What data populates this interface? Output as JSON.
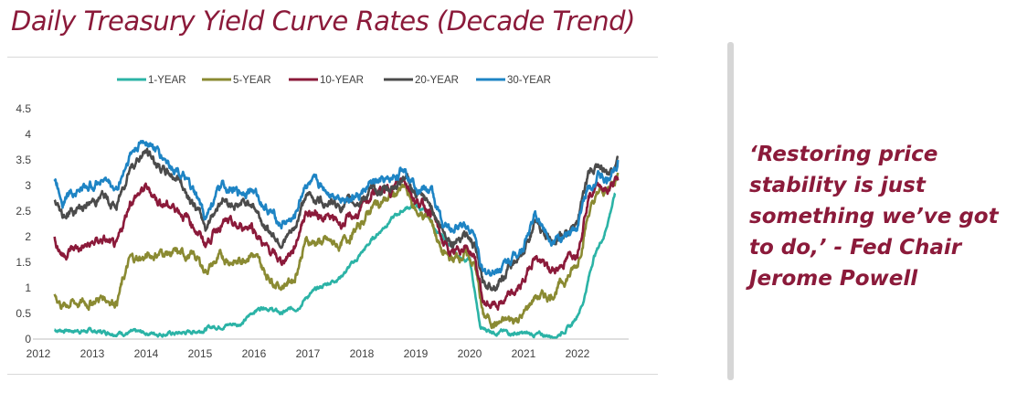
{
  "page": {
    "title": "Daily Treasury Yield Curve Rates (Decade Trend)",
    "quote": "‘Restoring price stability is just something we’ve got to do,’ - Fed Chair Jerome Powell",
    "accent_color": "#8b1a3a"
  },
  "chart_data": {
    "type": "line",
    "title": "",
    "xlabel": "",
    "ylabel": "",
    "xlim": [
      2012,
      2022.95
    ],
    "ylim": [
      0,
      4.5
    ],
    "x_ticks": [
      "2012",
      "2013",
      "2014",
      "2015",
      "2016",
      "2017",
      "2018",
      "2019",
      "2020",
      "2021",
      "2022"
    ],
    "y_ticks": [
      "0",
      "0.5",
      "1",
      "1.5",
      "2",
      "2.5",
      "3",
      "3.5",
      "4",
      "4.5"
    ],
    "grid": false,
    "legend_position": "top",
    "series": [
      {
        "name": "1-YEAR",
        "color": "#2bb3a6",
        "points": [
          [
            2012.3,
            0.18
          ],
          [
            2012.6,
            0.17
          ],
          [
            2012.9,
            0.16
          ],
          [
            2013.2,
            0.14
          ],
          [
            2013.5,
            0.13
          ],
          [
            2013.8,
            0.12
          ],
          [
            2014.0,
            0.12
          ],
          [
            2014.3,
            0.11
          ],
          [
            2014.6,
            0.11
          ],
          [
            2014.9,
            0.15
          ],
          [
            2015.2,
            0.23
          ],
          [
            2015.5,
            0.28
          ],
          [
            2015.8,
            0.32
          ],
          [
            2016.0,
            0.55
          ],
          [
            2016.2,
            0.65
          ],
          [
            2016.5,
            0.5
          ],
          [
            2016.8,
            0.62
          ],
          [
            2017.0,
            0.85
          ],
          [
            2017.3,
            1.05
          ],
          [
            2017.6,
            1.22
          ],
          [
            2017.9,
            1.55
          ],
          [
            2018.2,
            1.95
          ],
          [
            2018.5,
            2.3
          ],
          [
            2018.8,
            2.55
          ],
          [
            2019.0,
            2.62
          ],
          [
            2019.2,
            2.45
          ],
          [
            2019.4,
            2.1
          ],
          [
            2019.6,
            1.85
          ],
          [
            2019.8,
            1.6
          ],
          [
            2020.0,
            1.55
          ],
          [
            2020.2,
            0.2
          ],
          [
            2020.5,
            0.15
          ],
          [
            2020.8,
            0.12
          ],
          [
            2021.0,
            0.1
          ],
          [
            2021.3,
            0.08
          ],
          [
            2021.6,
            0.06
          ],
          [
            2021.9,
            0.28
          ],
          [
            2022.1,
            0.7
          ],
          [
            2022.3,
            1.6
          ],
          [
            2022.5,
            2.05
          ],
          [
            2022.7,
            2.85
          ]
        ]
      },
      {
        "name": "5-YEAR",
        "color": "#8a8a32",
        "points": [
          [
            2012.3,
            0.88
          ],
          [
            2012.45,
            0.65
          ],
          [
            2012.6,
            0.72
          ],
          [
            2012.9,
            0.7
          ],
          [
            2013.2,
            0.82
          ],
          [
            2013.45,
            0.75
          ],
          [
            2013.7,
            1.55
          ],
          [
            2014.0,
            1.6
          ],
          [
            2014.3,
            1.7
          ],
          [
            2014.6,
            1.65
          ],
          [
            2014.9,
            1.62
          ],
          [
            2015.1,
            1.35
          ],
          [
            2015.4,
            1.6
          ],
          [
            2015.7,
            1.5
          ],
          [
            2015.95,
            1.72
          ],
          [
            2016.2,
            1.3
          ],
          [
            2016.5,
            1.05
          ],
          [
            2016.75,
            1.2
          ],
          [
            2016.95,
            1.9
          ],
          [
            2017.3,
            1.9
          ],
          [
            2017.6,
            1.82
          ],
          [
            2017.95,
            2.2
          ],
          [
            2018.2,
            2.6
          ],
          [
            2018.5,
            2.75
          ],
          [
            2018.8,
            2.95
          ],
          [
            2019.0,
            2.5
          ],
          [
            2019.3,
            2.3
          ],
          [
            2019.5,
            1.65
          ],
          [
            2019.7,
            1.55
          ],
          [
            2019.9,
            1.68
          ],
          [
            2020.1,
            1.45
          ],
          [
            2020.25,
            0.45
          ],
          [
            2020.5,
            0.3
          ],
          [
            2020.8,
            0.37
          ],
          [
            2021.0,
            0.46
          ],
          [
            2021.2,
            0.82
          ],
          [
            2021.5,
            0.85
          ],
          [
            2021.8,
            1.2
          ],
          [
            2022.0,
            1.45
          ],
          [
            2022.2,
            2.45
          ],
          [
            2022.4,
            2.85
          ],
          [
            2022.55,
            2.9
          ],
          [
            2022.75,
            3.25
          ]
        ]
      },
      {
        "name": "10-YEAR",
        "color": "#8b1a3a",
        "points": [
          [
            2012.3,
            1.95
          ],
          [
            2012.45,
            1.65
          ],
          [
            2012.6,
            1.75
          ],
          [
            2012.9,
            1.8
          ],
          [
            2013.2,
            1.95
          ],
          [
            2013.45,
            1.75
          ],
          [
            2013.7,
            2.7
          ],
          [
            2014.0,
            2.95
          ],
          [
            2014.3,
            2.65
          ],
          [
            2014.6,
            2.55
          ],
          [
            2014.9,
            2.2
          ],
          [
            2015.1,
            1.85
          ],
          [
            2015.4,
            2.3
          ],
          [
            2015.7,
            2.15
          ],
          [
            2015.95,
            2.25
          ],
          [
            2016.2,
            1.8
          ],
          [
            2016.5,
            1.5
          ],
          [
            2016.75,
            1.78
          ],
          [
            2016.95,
            2.5
          ],
          [
            2017.3,
            2.4
          ],
          [
            2017.6,
            2.25
          ],
          [
            2017.95,
            2.45
          ],
          [
            2018.2,
            2.85
          ],
          [
            2018.5,
            2.9
          ],
          [
            2018.8,
            3.15
          ],
          [
            2019.0,
            2.7
          ],
          [
            2019.3,
            2.5
          ],
          [
            2019.5,
            1.9
          ],
          [
            2019.7,
            1.6
          ],
          [
            2019.9,
            1.85
          ],
          [
            2020.1,
            1.6
          ],
          [
            2020.25,
            0.7
          ],
          [
            2020.5,
            0.65
          ],
          [
            2020.8,
            0.85
          ],
          [
            2021.0,
            1.1
          ],
          [
            2021.2,
            1.65
          ],
          [
            2021.5,
            1.3
          ],
          [
            2021.8,
            1.55
          ],
          [
            2022.0,
            1.75
          ],
          [
            2022.2,
            2.8
          ],
          [
            2022.4,
            3.05
          ],
          [
            2022.55,
            2.9
          ],
          [
            2022.75,
            3.1
          ]
        ]
      },
      {
        "name": "20-YEAR",
        "color": "#4b4b4b",
        "points": [
          [
            2012.3,
            2.7
          ],
          [
            2012.45,
            2.4
          ],
          [
            2012.6,
            2.5
          ],
          [
            2012.9,
            2.6
          ],
          [
            2013.2,
            2.8
          ],
          [
            2013.45,
            2.55
          ],
          [
            2013.7,
            3.4
          ],
          [
            2014.0,
            3.65
          ],
          [
            2014.3,
            3.3
          ],
          [
            2014.6,
            3.15
          ],
          [
            2014.9,
            2.6
          ],
          [
            2015.1,
            2.2
          ],
          [
            2015.4,
            2.75
          ],
          [
            2015.7,
            2.6
          ],
          [
            2015.95,
            2.7
          ],
          [
            2016.2,
            2.2
          ],
          [
            2016.5,
            1.9
          ],
          [
            2016.75,
            2.1
          ],
          [
            2016.95,
            2.8
          ],
          [
            2017.3,
            2.7
          ],
          [
            2017.6,
            2.6
          ],
          [
            2017.95,
            2.7
          ],
          [
            2018.2,
            2.9
          ],
          [
            2018.5,
            2.9
          ],
          [
            2018.8,
            3.2
          ],
          [
            2019.0,
            2.8
          ],
          [
            2019.3,
            2.6
          ],
          [
            2019.5,
            2.1
          ],
          [
            2019.7,
            1.9
          ],
          [
            2019.9,
            2.1
          ],
          [
            2020.1,
            1.8
          ],
          [
            2020.25,
            1.05
          ],
          [
            2020.5,
            1.1
          ],
          [
            2020.8,
            1.45
          ],
          [
            2021.0,
            1.75
          ],
          [
            2021.2,
            2.25
          ],
          [
            2021.5,
            1.95
          ],
          [
            2021.8,
            2.05
          ],
          [
            2022.0,
            2.3
          ],
          [
            2022.2,
            3.2
          ],
          [
            2022.4,
            3.4
          ],
          [
            2022.55,
            3.2
          ],
          [
            2022.75,
            3.55
          ]
        ]
      },
      {
        "name": "30-YEAR",
        "color": "#1e84c4",
        "points": [
          [
            2012.3,
            3.15
          ],
          [
            2012.45,
            2.75
          ],
          [
            2012.6,
            2.9
          ],
          [
            2012.9,
            2.95
          ],
          [
            2013.2,
            3.15
          ],
          [
            2013.45,
            2.9
          ],
          [
            2013.7,
            3.6
          ],
          [
            2014.0,
            3.9
          ],
          [
            2014.3,
            3.55
          ],
          [
            2014.6,
            3.3
          ],
          [
            2014.9,
            2.8
          ],
          [
            2015.1,
            2.4
          ],
          [
            2015.4,
            3.0
          ],
          [
            2015.7,
            2.85
          ],
          [
            2015.95,
            2.95
          ],
          [
            2016.2,
            2.6
          ],
          [
            2016.5,
            2.25
          ],
          [
            2016.75,
            2.35
          ],
          [
            2016.95,
            3.05
          ],
          [
            2017.3,
            2.95
          ],
          [
            2017.6,
            2.8
          ],
          [
            2017.95,
            2.78
          ],
          [
            2018.2,
            3.05
          ],
          [
            2018.5,
            3.05
          ],
          [
            2018.8,
            3.35
          ],
          [
            2019.0,
            3.05
          ],
          [
            2019.3,
            2.85
          ],
          [
            2019.5,
            2.25
          ],
          [
            2019.7,
            2.1
          ],
          [
            2019.9,
            2.3
          ],
          [
            2020.1,
            2.0
          ],
          [
            2020.25,
            1.25
          ],
          [
            2020.5,
            1.35
          ],
          [
            2020.8,
            1.6
          ],
          [
            2021.0,
            1.85
          ],
          [
            2021.2,
            2.4
          ],
          [
            2021.5,
            2.0
          ],
          [
            2021.8,
            1.95
          ],
          [
            2022.0,
            2.2
          ],
          [
            2022.2,
            3.0
          ],
          [
            2022.4,
            3.2
          ],
          [
            2022.55,
            3.05
          ],
          [
            2022.75,
            3.5
          ]
        ]
      }
    ]
  }
}
